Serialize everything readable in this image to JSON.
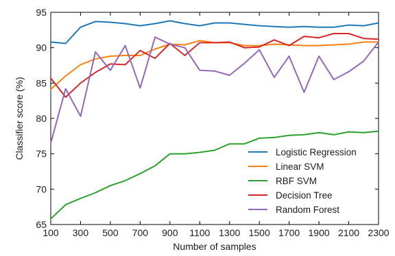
{
  "chart_data": {
    "type": "line",
    "title": "",
    "xlabel": "Number of samples",
    "ylabel": "Classifier score (%)",
    "xlim": [
      100,
      2300
    ],
    "ylim": [
      65,
      95
    ],
    "xticks": [
      100,
      300,
      500,
      700,
      900,
      1100,
      1300,
      1500,
      1700,
      1900,
      2100,
      2300
    ],
    "yticks": [
      65,
      70,
      75,
      80,
      85,
      90,
      95
    ],
    "grid": false,
    "legend_position": "lower-right",
    "x": [
      100,
      200,
      300,
      400,
      500,
      600,
      700,
      800,
      900,
      1000,
      1100,
      1200,
      1300,
      1400,
      1500,
      1600,
      1700,
      1800,
      1900,
      2000,
      2100,
      2200,
      2300
    ],
    "series": [
      {
        "name": "Logistic Regression",
        "color": "#1f77b4",
        "values": [
          90.8,
          90.6,
          92.9,
          93.7,
          93.6,
          93.4,
          93.1,
          93.4,
          93.8,
          93.4,
          93.1,
          93.5,
          93.5,
          93.3,
          93.1,
          93.0,
          92.9,
          93.0,
          92.9,
          92.9,
          93.2,
          93.1,
          93.5
        ]
      },
      {
        "name": "Linear SVM",
        "color": "#ff7f0e",
        "values": [
          84.1,
          86.0,
          87.6,
          88.4,
          88.8,
          88.9,
          88.9,
          89.8,
          90.5,
          90.4,
          91.0,
          90.7,
          90.7,
          90.3,
          90.3,
          90.5,
          90.4,
          90.3,
          90.3,
          90.4,
          90.5,
          90.8,
          90.8
        ]
      },
      {
        "name": "RBF SVM",
        "color": "#2ca02c",
        "values": [
          65.8,
          67.8,
          68.7,
          69.5,
          70.5,
          71.2,
          72.2,
          73.3,
          75.0,
          75.0,
          75.2,
          75.5,
          76.4,
          76.4,
          77.2,
          77.3,
          77.6,
          77.7,
          78.0,
          77.7,
          78.1,
          78.0,
          78.2
        ]
      },
      {
        "name": "Decision Tree",
        "color": "#d62728",
        "values": [
          85.7,
          83.0,
          85.0,
          86.5,
          87.7,
          87.6,
          89.6,
          88.5,
          90.6,
          88.9,
          90.7,
          90.7,
          90.8,
          90.0,
          90.1,
          91.1,
          90.3,
          91.6,
          91.4,
          92.0,
          92.0,
          91.3,
          91.2
        ]
      },
      {
        "name": "Random Forest",
        "color": "#9467bd",
        "values": [
          76.5,
          84.2,
          80.3,
          89.4,
          86.8,
          90.3,
          84.3,
          91.5,
          90.5,
          90.0,
          86.8,
          86.7,
          86.1,
          87.8,
          89.7,
          85.8,
          88.8,
          83.7,
          88.8,
          85.5,
          86.6,
          88.1,
          90.8
        ]
      }
    ]
  }
}
